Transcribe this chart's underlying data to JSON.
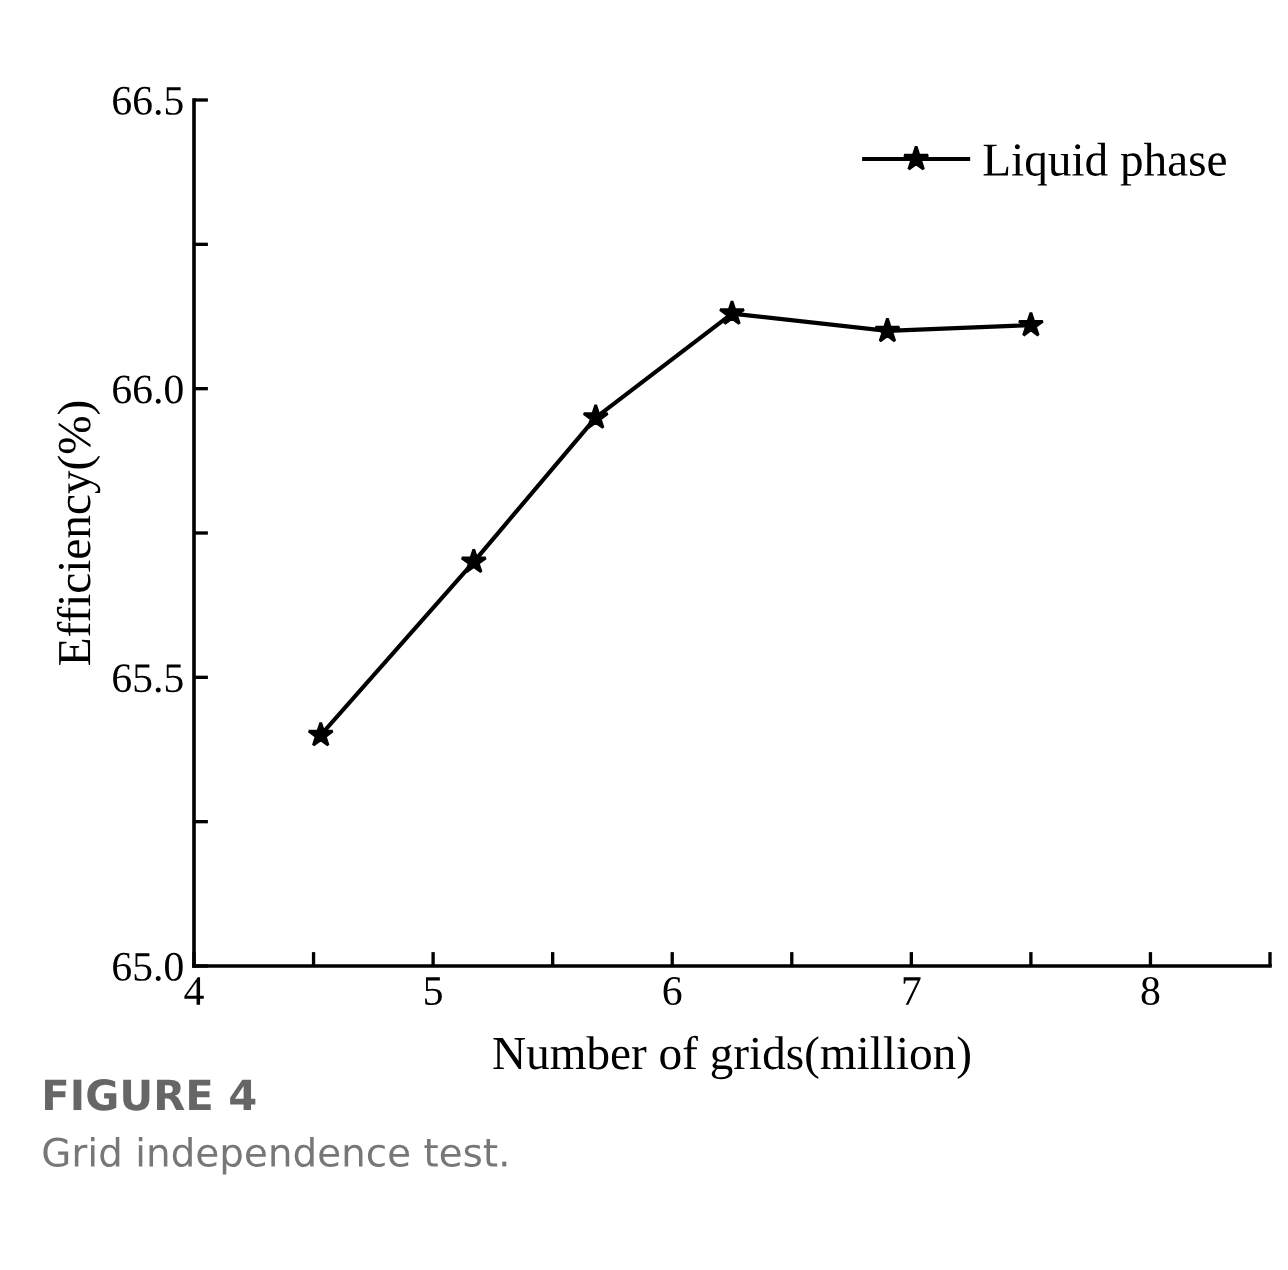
{
  "chart_data": {
    "type": "line",
    "xlabel": "Number of grids(million)",
    "ylabel": "Efficiency(%)",
    "x": [
      4.53,
      5.17,
      5.68,
      6.25,
      6.9,
      7.5
    ],
    "series": [
      {
        "name": "Liquid phase",
        "color": "#000000",
        "values": [
          65.4,
          65.7,
          65.95,
          66.13,
          66.1,
          66.11
        ]
      }
    ],
    "xlim": [
      4,
      8.5
    ],
    "xticks": [
      4,
      {
        "value": 4.5,
        "label": null
      },
      5,
      {
        "value": 5.5,
        "label": null
      },
      6,
      {
        "value": 6.5,
        "label": null
      },
      7,
      {
        "value": 7.5,
        "label": null
      },
      8,
      {
        "value": 8.5,
        "label": null
      }
    ],
    "ylim": [
      65.0,
      66.5
    ],
    "yticks": [
      {
        "value": 65.0,
        "label": "65.0"
      },
      {
        "value": 65.25,
        "label": null
      },
      {
        "value": 65.5,
        "label": "65.5"
      },
      {
        "value": 65.75,
        "label": null
      },
      {
        "value": 66.0,
        "label": "66.0"
      },
      {
        "value": 66.25,
        "label": null
      },
      {
        "value": 66.5,
        "label": "66.5"
      }
    ],
    "marker": "star",
    "line_style": "solid",
    "grid": false,
    "legend": "top right",
    "annotations": [
      "FIGURE 4",
      "Grid independence test."
    ]
  }
}
